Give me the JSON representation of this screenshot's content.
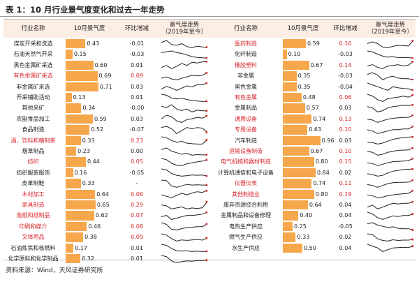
{
  "title": "表 1：10 月行业景气度变化和过去一年走势",
  "headers": {
    "name": "行业名称",
    "value": "10月景气度",
    "change": "环比增减",
    "trend_line1": "景气度走势",
    "trend_line2": "（2019年至今）"
  },
  "footer": "资料来源：Wind，天风证券研究所",
  "colors": {
    "bar": "#f7a74b",
    "header_bg": "#fdeee4",
    "up": "#d8242b",
    "down": "#222222",
    "trend_line": "#222222",
    "trend_marker": "#d8242b"
  },
  "left_rows": [
    {
      "name": "煤炭开采和洗选",
      "value": "0.43",
      "change": "-0.01",
      "red": false,
      "trend": [
        0.55,
        0.6,
        0.5,
        0.48,
        0.52,
        0.45,
        0.42,
        0.46,
        0.44,
        0.43
      ]
    },
    {
      "name": "石油天然气开采",
      "value": "0.15",
      "change": "-0.03",
      "red": false,
      "trend": [
        0.5,
        0.55,
        0.6,
        0.5,
        0.45,
        0.35,
        0.25,
        0.2,
        0.18,
        0.15
      ]
    },
    {
      "name": "黑色金属矿采选",
      "value": "0.60",
      "change": "0.01",
      "red": false,
      "trend": [
        0.45,
        0.5,
        0.42,
        0.48,
        0.55,
        0.5,
        0.58,
        0.56,
        0.59,
        0.6
      ]
    },
    {
      "name": "有色金属矿采选",
      "value": "0.69",
      "change": "0.09",
      "red": true,
      "trend": [
        0.5,
        0.55,
        0.48,
        0.45,
        0.5,
        0.55,
        0.6,
        0.58,
        0.6,
        0.69
      ]
    },
    {
      "name": "非金属矿采选",
      "value": "0.71",
      "change": "0.03",
      "red": false,
      "trend": [
        0.6,
        0.65,
        0.62,
        0.58,
        0.62,
        0.66,
        0.64,
        0.68,
        0.68,
        0.71
      ]
    },
    {
      "name": "开采辅助活动",
      "value": "0.13",
      "change": "0.01",
      "red": false,
      "trend": [
        0.5,
        0.45,
        0.3,
        0.25,
        0.3,
        0.22,
        0.18,
        0.15,
        0.12,
        0.13
      ]
    },
    {
      "name": "其他采矿",
      "value": "0.34",
      "change": "-0.00",
      "red": false,
      "trend": [
        0.5,
        0.45,
        0.55,
        0.4,
        0.35,
        0.4,
        0.3,
        0.36,
        0.34,
        0.34
      ]
    },
    {
      "name": "农副食品加工",
      "value": "0.59",
      "change": "0.03",
      "red": false,
      "trend": [
        0.55,
        0.6,
        0.58,
        0.52,
        0.5,
        0.54,
        0.55,
        0.57,
        0.56,
        0.59
      ]
    },
    {
      "name": "食品制造",
      "value": "0.52",
      "change": "-0.07",
      "red": false,
      "trend": [
        0.6,
        0.62,
        0.58,
        0.5,
        0.55,
        0.6,
        0.58,
        0.6,
        0.59,
        0.52
      ]
    },
    {
      "name": "酒、饮料和精制茶",
      "value": "0.33",
      "change": "0.23",
      "red": true,
      "trend": [
        0.5,
        0.45,
        0.3,
        0.2,
        0.25,
        0.15,
        0.12,
        0.1,
        0.1,
        0.33
      ]
    },
    {
      "name": "烟草制品",
      "value": "0.23",
      "change": "0.00",
      "red": false,
      "trend": [
        0.4,
        0.45,
        0.35,
        0.3,
        0.25,
        0.28,
        0.22,
        0.24,
        0.23,
        0.23
      ]
    },
    {
      "name": "纺织",
      "value": "0.44",
      "change": "0.05",
      "red": true,
      "trend": [
        0.5,
        0.45,
        0.3,
        0.22,
        0.2,
        0.28,
        0.32,
        0.36,
        0.39,
        0.44
      ]
    },
    {
      "name": "纺织服装服饰",
      "value": "0.16",
      "change": "-0.05",
      "red": false,
      "trend": [
        0.55,
        0.5,
        0.3,
        0.2,
        0.15,
        0.18,
        0.22,
        0.2,
        0.21,
        0.16
      ]
    },
    {
      "name": "皮革制鞋",
      "value": "0.33",
      "change": "-",
      "red": false,
      "trend": [
        0.5,
        0.48,
        0.3,
        0.25,
        0.3,
        0.35,
        0.33,
        0.34,
        0.33,
        0.33
      ]
    },
    {
      "name": "木材加工",
      "value": "0.64",
      "change": "0.06",
      "red": true,
      "trend": [
        0.5,
        0.45,
        0.4,
        0.48,
        0.55,
        0.5,
        0.56,
        0.6,
        0.58,
        0.64
      ]
    },
    {
      "name": "家具制造",
      "value": "0.65",
      "change": "0.29",
      "red": true,
      "trend": [
        0.5,
        0.45,
        0.3,
        0.35,
        0.4,
        0.3,
        0.35,
        0.32,
        0.36,
        0.65
      ]
    },
    {
      "name": "造纸和纸制品",
      "value": "0.62",
      "change": "0.07",
      "red": true,
      "trend": [
        0.45,
        0.5,
        0.35,
        0.4,
        0.45,
        0.5,
        0.5,
        0.52,
        0.55,
        0.62
      ]
    },
    {
      "name": "印刷和媒介",
      "value": "0.46",
      "change": "0.08",
      "red": true,
      "trend": [
        0.5,
        0.45,
        0.3,
        0.28,
        0.32,
        0.35,
        0.36,
        0.38,
        0.38,
        0.46
      ]
    },
    {
      "name": "文体用品",
      "value": "0.38",
      "change": "0.09",
      "red": true,
      "trend": [
        0.55,
        0.5,
        0.35,
        0.25,
        0.3,
        0.28,
        0.3,
        0.32,
        0.29,
        0.38
      ]
    },
    {
      "name": "石油炼焦和核燃料",
      "value": "0.17",
      "change": "0.01",
      "red": false,
      "trend": [
        0.5,
        0.45,
        0.3,
        0.2,
        0.18,
        0.2,
        0.16,
        0.18,
        0.16,
        0.17
      ]
    },
    {
      "name": "化学原料和化学制品",
      "value": "0.32",
      "change": "0.01",
      "red": false,
      "trend": [
        0.45,
        0.42,
        0.3,
        0.25,
        0.28,
        0.3,
        0.29,
        0.31,
        0.31,
        0.32
      ]
    }
  ],
  "right_rows": [
    {
      "name": "医药制造",
      "value": "0.59",
      "change": "0.16",
      "red": true,
      "trend": [
        0.5,
        0.55,
        0.5,
        0.4,
        0.38,
        0.42,
        0.45,
        0.44,
        0.43,
        0.59
      ]
    },
    {
      "name": "化纤制造",
      "value": "0.10",
      "change": "-0.03",
      "red": false,
      "trend": [
        0.45,
        0.4,
        0.3,
        0.2,
        0.15,
        0.18,
        0.12,
        0.14,
        0.13,
        0.1
      ]
    },
    {
      "name": "橡胶塑料",
      "value": "0.67",
      "red": true,
      "change": "0.14",
      "trend": [
        0.5,
        0.55,
        0.45,
        0.4,
        0.5,
        0.52,
        0.55,
        0.5,
        0.53,
        0.67
      ]
    },
    {
      "name": "非金属",
      "value": "0.35",
      "change": "-0.03",
      "red": false,
      "trend": [
        0.5,
        0.55,
        0.48,
        0.35,
        0.42,
        0.45,
        0.4,
        0.38,
        0.38,
        0.35
      ]
    },
    {
      "name": "黑色金属",
      "value": "0.35",
      "change": "-0.04",
      "red": false,
      "trend": [
        0.55,
        0.5,
        0.45,
        0.4,
        0.35,
        0.45,
        0.42,
        0.4,
        0.39,
        0.35
      ]
    },
    {
      "name": "有色金属",
      "value": "0.48",
      "change": "0.06",
      "red": true,
      "trend": [
        0.5,
        0.45,
        0.35,
        0.3,
        0.38,
        0.4,
        0.42,
        0.45,
        0.42,
        0.48
      ]
    },
    {
      "name": "金属制品",
      "value": "0.57",
      "change": "0.03",
      "red": false,
      "trend": [
        0.5,
        0.45,
        0.3,
        0.35,
        0.45,
        0.5,
        0.52,
        0.55,
        0.54,
        0.57
      ]
    },
    {
      "name": "通用设备",
      "value": "0.74",
      "change": "0.13",
      "red": true,
      "trend": [
        0.5,
        0.45,
        0.3,
        0.4,
        0.5,
        0.55,
        0.58,
        0.6,
        0.61,
        0.74
      ]
    },
    {
      "name": "专用设备",
      "value": "0.63",
      "change": "0.10",
      "red": true,
      "trend": [
        0.5,
        0.45,
        0.35,
        0.4,
        0.45,
        0.5,
        0.5,
        0.53,
        0.53,
        0.63
      ]
    },
    {
      "name": "汽车制造",
      "value": "0.96",
      "change": "0.03",
      "red": false,
      "trend": [
        0.4,
        0.35,
        0.2,
        0.3,
        0.5,
        0.7,
        0.8,
        0.88,
        0.93,
        0.96
      ]
    },
    {
      "name": "运输设备制造",
      "value": "0.67",
      "change": "0.10",
      "red": true,
      "trend": [
        0.5,
        0.45,
        0.3,
        0.35,
        0.45,
        0.5,
        0.55,
        0.56,
        0.57,
        0.67
      ]
    },
    {
      "name": "电气机械和器材制造",
      "value": "0.80",
      "change": "0.15",
      "red": true,
      "trend": [
        0.5,
        0.45,
        0.3,
        0.4,
        0.5,
        0.58,
        0.6,
        0.62,
        0.65,
        0.8
      ]
    },
    {
      "name": "计算机通信和电子设备",
      "value": "0.84",
      "change": "0.02",
      "red": false,
      "trend": [
        0.55,
        0.5,
        0.4,
        0.45,
        0.6,
        0.7,
        0.75,
        0.8,
        0.82,
        0.84
      ]
    },
    {
      "name": "仪器仪表",
      "value": "0.74",
      "change": "0.11",
      "red": true,
      "trend": [
        0.5,
        0.45,
        0.35,
        0.45,
        0.55,
        0.6,
        0.62,
        0.62,
        0.63,
        0.74
      ]
    },
    {
      "name": "其他制造业",
      "value": "0.80",
      "change": "0.19",
      "red": true,
      "trend": [
        0.5,
        0.45,
        0.3,
        0.35,
        0.45,
        0.5,
        0.55,
        0.58,
        0.61,
        0.8
      ]
    },
    {
      "name": "废弃资源综合利用",
      "value": "0.64",
      "change": "0.04",
      "red": false,
      "trend": [
        0.5,
        0.55,
        0.45,
        0.5,
        0.55,
        0.6,
        0.58,
        0.6,
        0.6,
        0.64
      ]
    },
    {
      "name": "金属制品和设备修理",
      "value": "0.40",
      "change": "0.04",
      "red": false,
      "trend": [
        0.45,
        0.4,
        0.3,
        0.25,
        0.3,
        0.35,
        0.33,
        0.36,
        0.36,
        0.4
      ]
    },
    {
      "name": "电热生产供应",
      "value": "0.25",
      "change": "-0.05",
      "red": false,
      "trend": [
        0.5,
        0.55,
        0.45,
        0.4,
        0.35,
        0.38,
        0.32,
        0.3,
        0.3,
        0.25
      ]
    },
    {
      "name": "燃气生产供应",
      "value": "0.33",
      "change": "0.02",
      "red": false,
      "trend": [
        0.5,
        0.48,
        0.35,
        0.3,
        0.28,
        0.32,
        0.3,
        0.31,
        0.31,
        0.33
      ]
    },
    {
      "name": "水生产供应",
      "value": "0.50",
      "change": "0.04",
      "red": false,
      "trend": [
        0.55,
        0.5,
        0.45,
        0.35,
        0.4,
        0.45,
        0.46,
        0.47,
        0.46,
        0.5
      ]
    }
  ]
}
